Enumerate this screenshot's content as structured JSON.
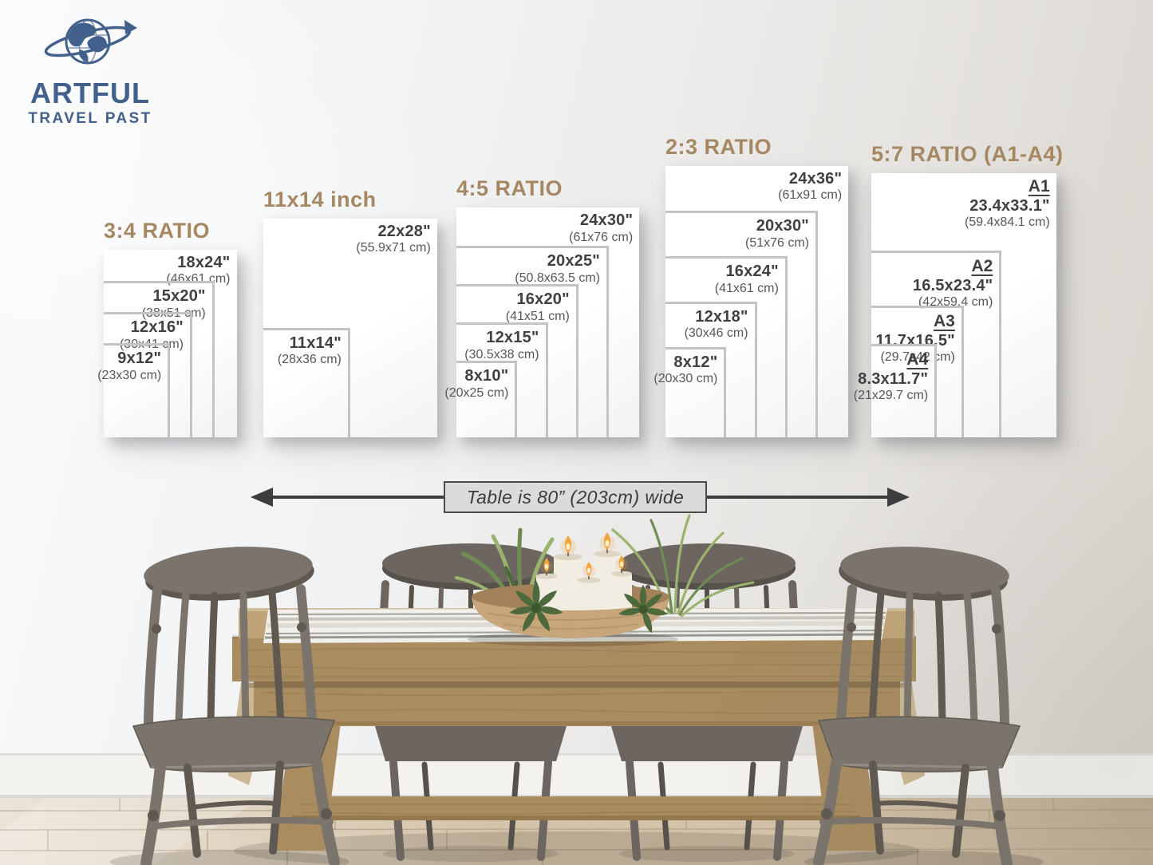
{
  "logo": {
    "brand_line1": "ARTFUL",
    "brand_line2": "TRAVEL PAST",
    "icon": "globe-orbit-icon"
  },
  "size_chart": {
    "groups": [
      {
        "title": "3:4 RATIO",
        "sizes": [
          {
            "in": "18x24\"",
            "cm": "(46x61 cm)"
          },
          {
            "in": "15x20\"",
            "cm": "(38x51 cm)"
          },
          {
            "in": "12x16\"",
            "cm": "(30x41 cm)"
          },
          {
            "in": "9x12\"",
            "cm": "(23x30 cm)"
          }
        ]
      },
      {
        "title": "11x14 inch",
        "sizes": [
          {
            "in": "22x28\"",
            "cm": "(55.9x71 cm)"
          },
          {
            "in": "11x14\"",
            "cm": "(28x36 cm)"
          }
        ]
      },
      {
        "title": "4:5 RATIO",
        "sizes": [
          {
            "in": "24x30\"",
            "cm": "(61x76 cm)"
          },
          {
            "in": "20x25\"",
            "cm": "(50.8x63.5 cm)"
          },
          {
            "in": "16x20\"",
            "cm": "(41x51 cm)"
          },
          {
            "in": "12x15\"",
            "cm": "(30.5x38 cm)"
          },
          {
            "in": "8x10\"",
            "cm": "(20x25 cm)"
          }
        ]
      },
      {
        "title": "2:3 RATIO",
        "sizes": [
          {
            "in": "24x36\"",
            "cm": "(61x91 cm)"
          },
          {
            "in": "20x30\"",
            "cm": "(51x76 cm)"
          },
          {
            "in": "16x24\"",
            "cm": "(41x61 cm)"
          },
          {
            "in": "12x18\"",
            "cm": "(30x46 cm)"
          },
          {
            "in": "8x12\"",
            "cm": "(20x30 cm)"
          }
        ]
      },
      {
        "title": "5:7 RATIO (A1-A4)",
        "sizes": [
          {
            "name": "A1",
            "in": "23.4x33.1\"",
            "cm": "(59.4x84.1 cm)"
          },
          {
            "name": "A2",
            "in": "16.5x23.4\"",
            "cm": "(42x59.4 cm)"
          },
          {
            "name": "A3",
            "in": "11.7x16.5\"",
            "cm": "(29.7x42 cm)"
          },
          {
            "name": "A4",
            "in": "8.3x11.7\"",
            "cm": "(21x29.7 cm)"
          }
        ]
      }
    ]
  },
  "table_annotation": {
    "label": "Table is 80” (203cm) wide"
  },
  "theme": {
    "title_brown": "#a58862",
    "text_dark": "#3f3f44",
    "text_gray": "#56565b",
    "frame_gray": "#c3c3c3",
    "logo_blue": "#42608c",
    "arrow_dark": "#3d3d3f",
    "label_bg": "#dbdbda",
    "label_border": "#4b4b4b",
    "wall_light": "#fafbfc",
    "wall_dark": "#d6d2cb",
    "poster_white": "#ffffff"
  },
  "scene": {
    "colors": {
      "baseboard": "#f3f2ee",
      "floor_mid": "#d4c2a8",
      "floor_line": "#a8957c",
      "wood_top": "#c0a478",
      "wood_face": "#a98c60",
      "wood_dark": "#84693f",
      "runner": "#f2f0ea",
      "runner_stripe": "#96948e",
      "chair_front": "#7b746c",
      "chair_front_dark": "#5f5952",
      "chair_back": "#6d6660",
      "chair_back_dark": "#57514b",
      "bowl": "#c8a67c",
      "bowl_dark": "#a3825a",
      "candle": "#f2ede3",
      "candle_rim": "#ded5c5",
      "flame": "#f2a43e",
      "plant_dark": "#4d6a3c",
      "plant_mid": "#6f8d52",
      "plant_light": "#9ab46e"
    }
  }
}
